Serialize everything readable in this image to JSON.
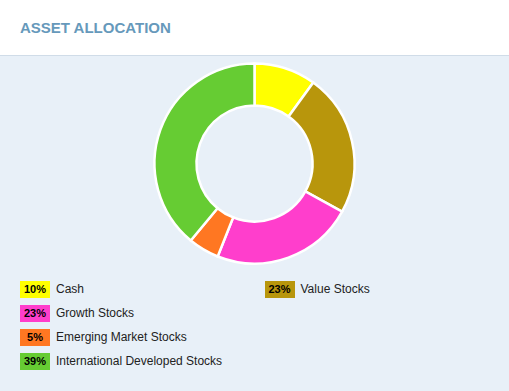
{
  "chart_data": {
    "type": "pie",
    "title": "ASSET ALLOCATION",
    "categories": [
      "Cash",
      "Value Stocks",
      "Growth Stocks",
      "Emerging Market Stocks",
      "International Developed Stocks"
    ],
    "values": [
      10,
      23,
      23,
      5,
      39
    ],
    "value_labels": [
      "10%",
      "23%",
      "23%",
      "5%",
      "39%"
    ],
    "colors": [
      "#FFFF00",
      "#B8960C",
      "#FF3ECC",
      "#FF7722",
      "#66CC33"
    ],
    "legend": "bottom"
  }
}
